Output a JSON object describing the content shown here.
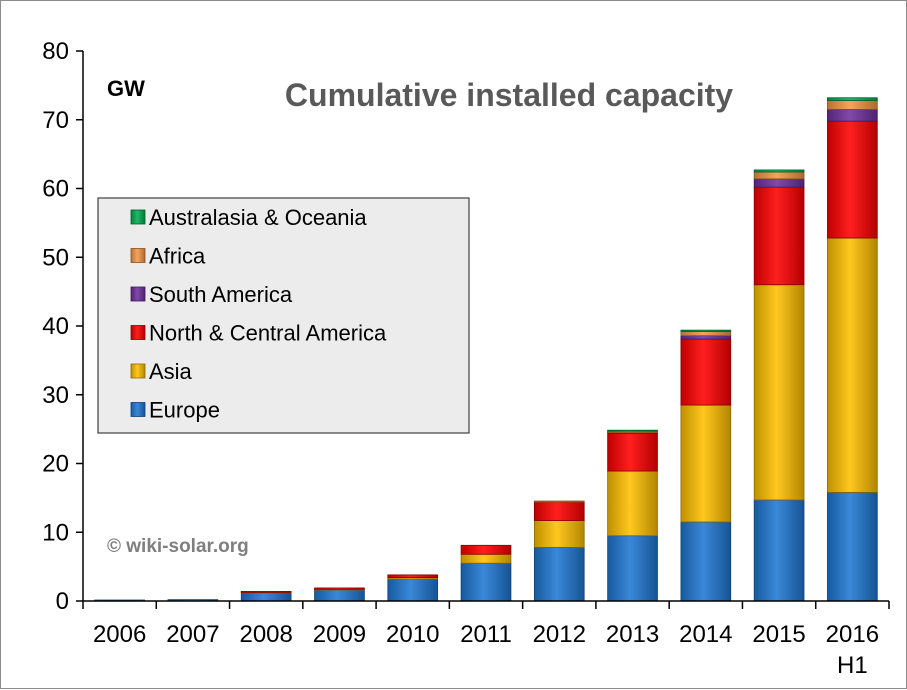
{
  "chart_data": {
    "type": "bar",
    "stacked": true,
    "title": "Cumulative installed capacity",
    "unit_label": "GW",
    "credit": "© wiki-solar.org",
    "categories": [
      {
        "label": "2006",
        "sublabel": ""
      },
      {
        "label": "2007",
        "sublabel": ""
      },
      {
        "label": "2008",
        "sublabel": ""
      },
      {
        "label": "2009",
        "sublabel": ""
      },
      {
        "label": "2010",
        "sublabel": ""
      },
      {
        "label": "2011",
        "sublabel": ""
      },
      {
        "label": "2012",
        "sublabel": ""
      },
      {
        "label": "2013",
        "sublabel": ""
      },
      {
        "label": "2014",
        "sublabel": ""
      },
      {
        "label": "2015",
        "sublabel": ""
      },
      {
        "label": "2016",
        "sublabel": "H1"
      }
    ],
    "series": [
      {
        "name": "Europe",
        "color": "#1f78d4",
        "values": [
          0.05,
          0.2,
          1.2,
          1.6,
          3.2,
          5.5,
          7.8,
          9.5,
          11.5,
          14.7,
          15.8
        ]
      },
      {
        "name": "Asia",
        "color": "#ffc000",
        "values": [
          0,
          0,
          0.05,
          0.1,
          0.2,
          1.3,
          3.9,
          9.4,
          17.0,
          31.3,
          37.0
        ]
      },
      {
        "name": "North & Central America",
        "color": "#ff0000",
        "values": [
          0,
          0,
          0.1,
          0.2,
          0.4,
          1.3,
          2.7,
          5.5,
          9.6,
          14.2,
          17.0
        ]
      },
      {
        "name": "South America",
        "color": "#7030a0",
        "values": [
          0,
          0,
          0,
          0,
          0,
          0,
          0,
          0.1,
          0.5,
          1.2,
          1.7
        ]
      },
      {
        "name": "Africa",
        "color": "#f79646",
        "values": [
          0,
          0,
          0,
          0,
          0,
          0,
          0.1,
          0.2,
          0.6,
          1.0,
          1.3
        ]
      },
      {
        "name": "Australasia & Oceania",
        "color": "#00b050",
        "values": [
          0,
          0,
          0,
          0,
          0,
          0,
          0,
          0.1,
          0.2,
          0.3,
          0.4
        ]
      }
    ],
    "legend_order": [
      "Australasia & Oceania",
      "Africa",
      "South America",
      "North & Central America",
      "Asia",
      "Europe"
    ],
    "legend_position": "left",
    "ylim": [
      0,
      80
    ],
    "yticks": [
      0,
      10,
      20,
      30,
      40,
      50,
      60,
      70,
      80
    ],
    "grid": false
  }
}
